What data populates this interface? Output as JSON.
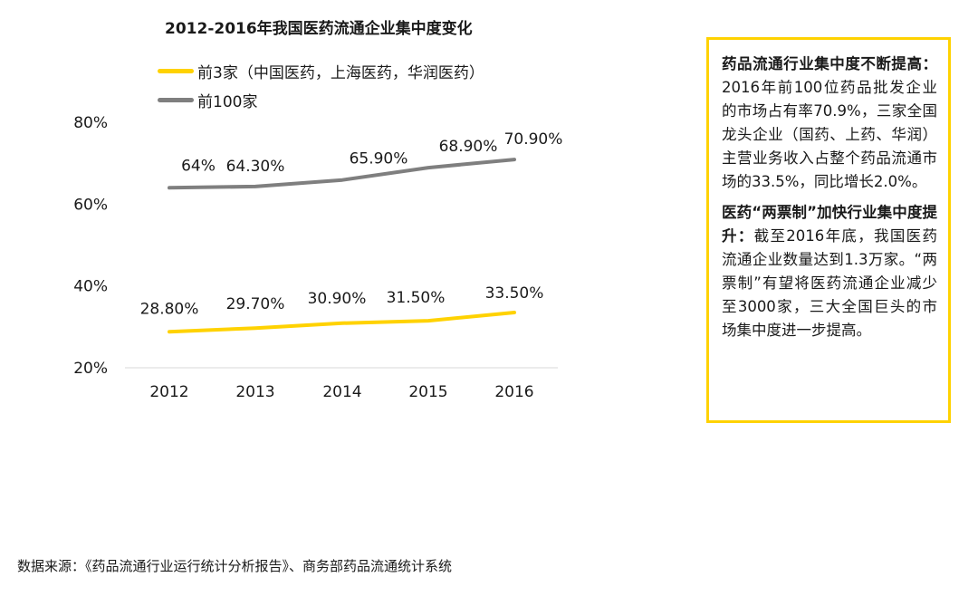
{
  "chart_data": {
    "type": "line",
    "title": "2012-2016年我国医药流通企业集中度变化",
    "categories": [
      "2012",
      "2013",
      "2014",
      "2015",
      "2016"
    ],
    "y_ticks": [
      "20%",
      "40%",
      "60%",
      "80%"
    ],
    "ylim": [
      20,
      80
    ],
    "series": [
      {
        "name": "前3家（中国医药，上海医药，华润医药）",
        "color": "#ffd200",
        "values": [
          28.8,
          29.7,
          30.9,
          31.5,
          33.5
        ],
        "labels": [
          "28.80%",
          "29.70%",
          "30.90%",
          "31.50%",
          "33.50%"
        ]
      },
      {
        "name": "前100家",
        "color": "#7f7f7f",
        "values": [
          64.0,
          64.3,
          65.9,
          68.9,
          70.9
        ],
        "labels": [
          "64%",
          "64.30%",
          "65.90%",
          "68.90%",
          "70.90%"
        ]
      }
    ],
    "grid": false,
    "legend_position": "top-left"
  },
  "notes": [
    {
      "bold": "药品流通行业集中度不断提高：",
      "text": "2016年前100位药品批发企业的市场占有率70.9%，三家全国龙头企业（国药、上药、华润）主营业务收入占整个药品流通市场的33.5%，同比增长2.0%。"
    },
    {
      "bold": "医药“两票制”加快行业集中度提升：",
      "text": "截至2016年底，我国医药流通企业数量达到1.3万家。“两票制”有望将医药流通企业减少至3000家，三大全国巨头的市场集中度进一步提高。"
    }
  ],
  "source": "数据来源：《药品流通行业运行统计分析报告》、商务部药品流通统计系统",
  "colors": {
    "accent": "#ffd200",
    "series_gray": "#7f7f7f",
    "axis": "#d9d9d9"
  }
}
